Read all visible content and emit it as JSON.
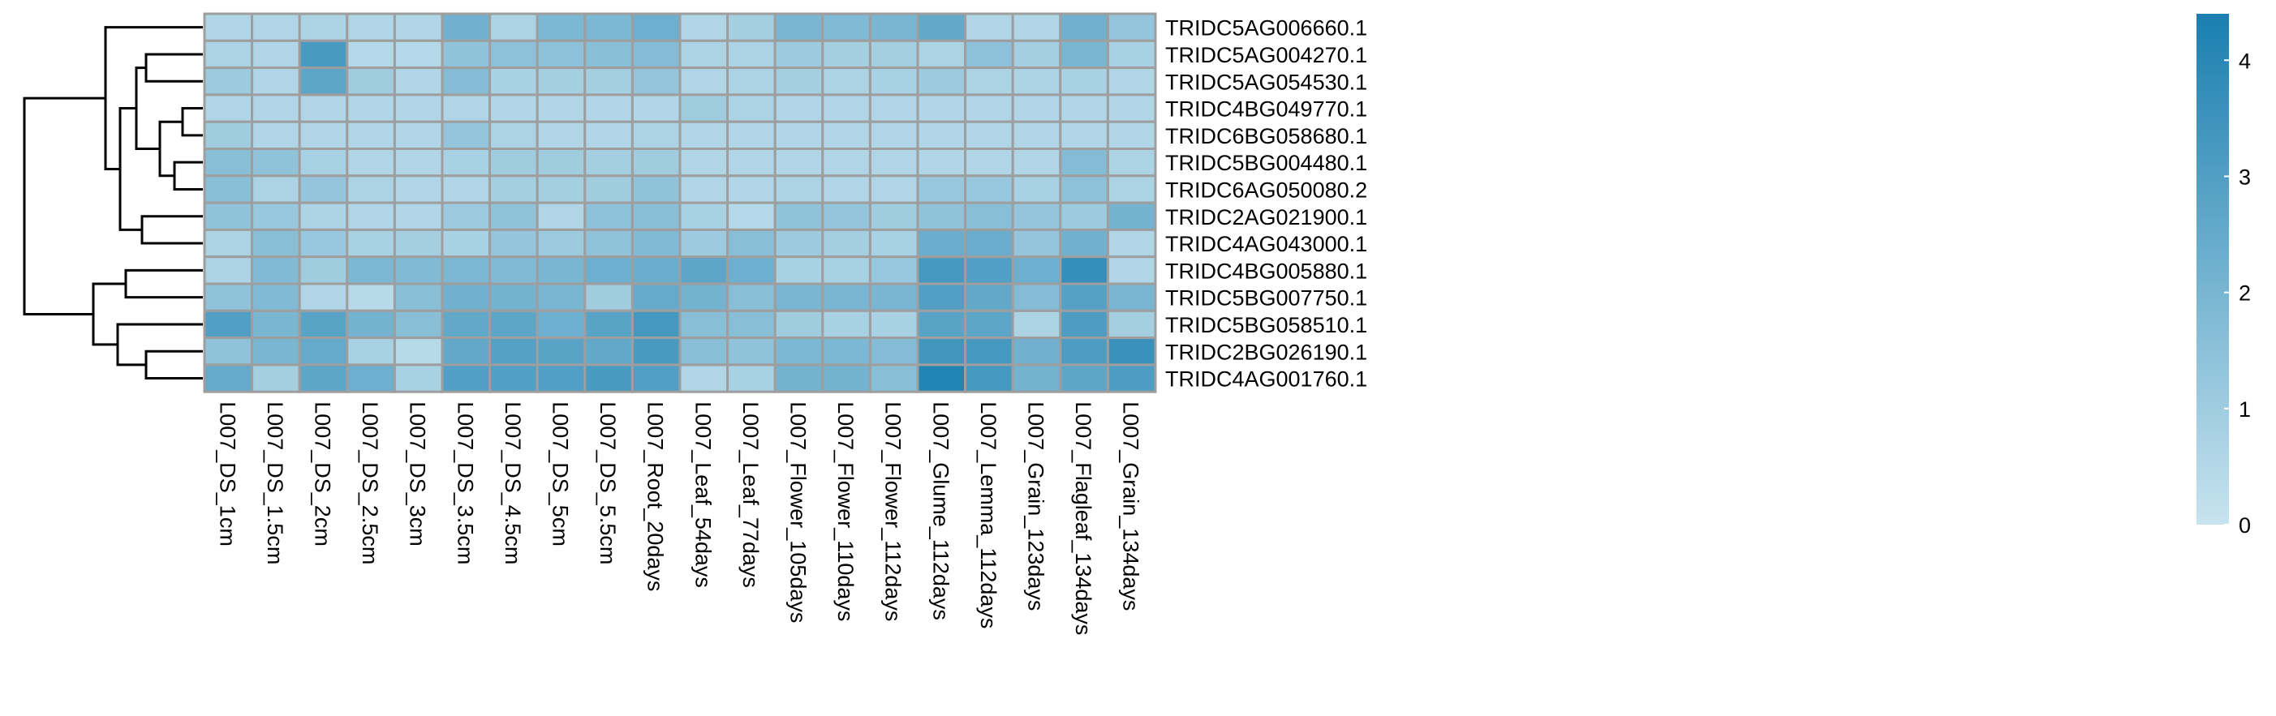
{
  "chart_data": {
    "type": "heatmap",
    "rows": [
      "TRIDC5AG006660.1",
      "TRIDC5AG004270.1",
      "TRIDC5AG054530.1",
      "TRIDC4BG049770.1",
      "TRIDC6BG058680.1",
      "TRIDC5BG004480.1",
      "TRIDC6AG050080.2",
      "TRIDC2AG021900.1",
      "TRIDC4AG043000.1",
      "TRIDC4BG005880.1",
      "TRIDC5BG007750.1",
      "TRIDC5BG058510.1",
      "TRIDC2BG026190.1",
      "TRIDC4AG001760.1"
    ],
    "columns": [
      "L007_DS_1cm",
      "L007_DS_1.5cm",
      "L007_DS_2cm",
      "L007_DS_2.5cm",
      "L007_DS_3cm",
      "L007_DS_3.5cm",
      "L007_DS_4.5cm",
      "L007_DS_5cm",
      "L007_DS_5.5cm",
      "L007_Root_20days",
      "L007_Leaf_54days",
      "L007_Leaf_77days",
      "L007_Flower_105days",
      "L007_Flower_110days",
      "L007_Flower_112days",
      "L007_Glume_112days",
      "L007_Lemma_112days",
      "L007_Grain_123days",
      "L007_Flagleaf_134days",
      "L007_Grain_134days"
    ],
    "values": [
      [
        0.6,
        0.6,
        0.7,
        0.6,
        0.6,
        2.2,
        0.7,
        1.9,
        1.9,
        2.3,
        0.6,
        0.9,
        2.0,
        1.8,
        2.0,
        2.6,
        0.6,
        0.6,
        2.2,
        1.3
      ],
      [
        0.7,
        0.6,
        3.2,
        0.5,
        0.5,
        1.4,
        1.5,
        1.5,
        1.6,
        1.7,
        0.7,
        0.7,
        1.1,
        0.9,
        0.9,
        0.7,
        1.5,
        0.9,
        2.0,
        0.8
      ],
      [
        1.1,
        0.6,
        2.7,
        1.0,
        0.6,
        1.7,
        0.8,
        0.9,
        0.9,
        1.3,
        0.6,
        0.7,
        0.9,
        0.7,
        0.8,
        1.1,
        0.7,
        0.7,
        0.8,
        0.6
      ],
      [
        0.6,
        0.6,
        0.6,
        0.6,
        0.6,
        0.6,
        0.6,
        0.6,
        0.6,
        0.6,
        1.0,
        0.7,
        0.6,
        0.6,
        0.6,
        0.6,
        0.6,
        0.6,
        0.6,
        0.6
      ],
      [
        1.0,
        0.6,
        0.6,
        0.6,
        0.6,
        1.3,
        0.7,
        0.6,
        0.6,
        0.7,
        0.6,
        0.6,
        0.6,
        0.6,
        0.6,
        0.6,
        0.6,
        0.6,
        0.6,
        0.6
      ],
      [
        1.6,
        1.4,
        0.8,
        0.6,
        0.6,
        0.8,
        1.0,
        1.0,
        0.9,
        1.0,
        0.6,
        0.6,
        0.6,
        0.6,
        0.6,
        0.6,
        0.6,
        0.6,
        1.7,
        0.7
      ],
      [
        1.6,
        0.7,
        1.3,
        0.7,
        0.6,
        0.6,
        0.9,
        0.9,
        1.0,
        1.4,
        0.6,
        0.6,
        0.7,
        0.6,
        0.6,
        1.2,
        1.2,
        0.8,
        1.5,
        0.7
      ],
      [
        1.4,
        1.2,
        0.7,
        0.6,
        0.6,
        1.1,
        1.4,
        0.6,
        1.5,
        1.6,
        0.8,
        0.5,
        1.4,
        1.3,
        1.0,
        1.4,
        1.6,
        1.3,
        1.1,
        2.1
      ],
      [
        0.7,
        1.6,
        1.2,
        0.8,
        0.9,
        0.8,
        1.3,
        1.1,
        1.4,
        1.8,
        1.1,
        1.6,
        1.1,
        0.9,
        0.8,
        2.4,
        2.4,
        1.3,
        2.2,
        0.6
      ],
      [
        0.7,
        1.8,
        1.0,
        1.9,
        1.8,
        1.9,
        1.8,
        2.0,
        2.3,
        2.4,
        2.7,
        2.3,
        0.8,
        0.8,
        1.2,
        3.3,
        3.0,
        2.3,
        3.7,
        0.6
      ],
      [
        1.4,
        1.8,
        0.6,
        0.4,
        1.6,
        2.2,
        2.1,
        2.0,
        1.0,
        2.5,
        2.1,
        1.6,
        2.0,
        2.0,
        2.0,
        3.0,
        2.6,
        1.7,
        2.9,
        2.0
      ],
      [
        3.0,
        2.0,
        2.8,
        2.1,
        1.6,
        2.6,
        2.7,
        2.3,
        2.8,
        3.3,
        1.6,
        1.6,
        1.0,
        0.8,
        0.8,
        2.8,
        2.7,
        0.7,
        3.1,
        0.9
      ],
      [
        1.4,
        2.0,
        2.5,
        0.8,
        0.4,
        2.6,
        2.9,
        2.8,
        2.6,
        3.2,
        1.6,
        1.4,
        1.9,
        1.9,
        1.7,
        3.4,
        3.3,
        2.2,
        3.1,
        3.6
      ],
      [
        2.5,
        0.9,
        2.7,
        2.3,
        0.8,
        3.0,
        3.0,
        3.0,
        3.2,
        3.0,
        0.6,
        0.8,
        2.1,
        2.1,
        1.6,
        4.2,
        3.3,
        2.1,
        2.7,
        3.1
      ]
    ],
    "color_scale": {
      "min": 0,
      "max": 4.4,
      "low_color": "#c7e3ee",
      "high_color": "#1a7fb0",
      "ticks": [
        0,
        1,
        2,
        3,
        4
      ]
    },
    "row_dendrogram": "left"
  }
}
